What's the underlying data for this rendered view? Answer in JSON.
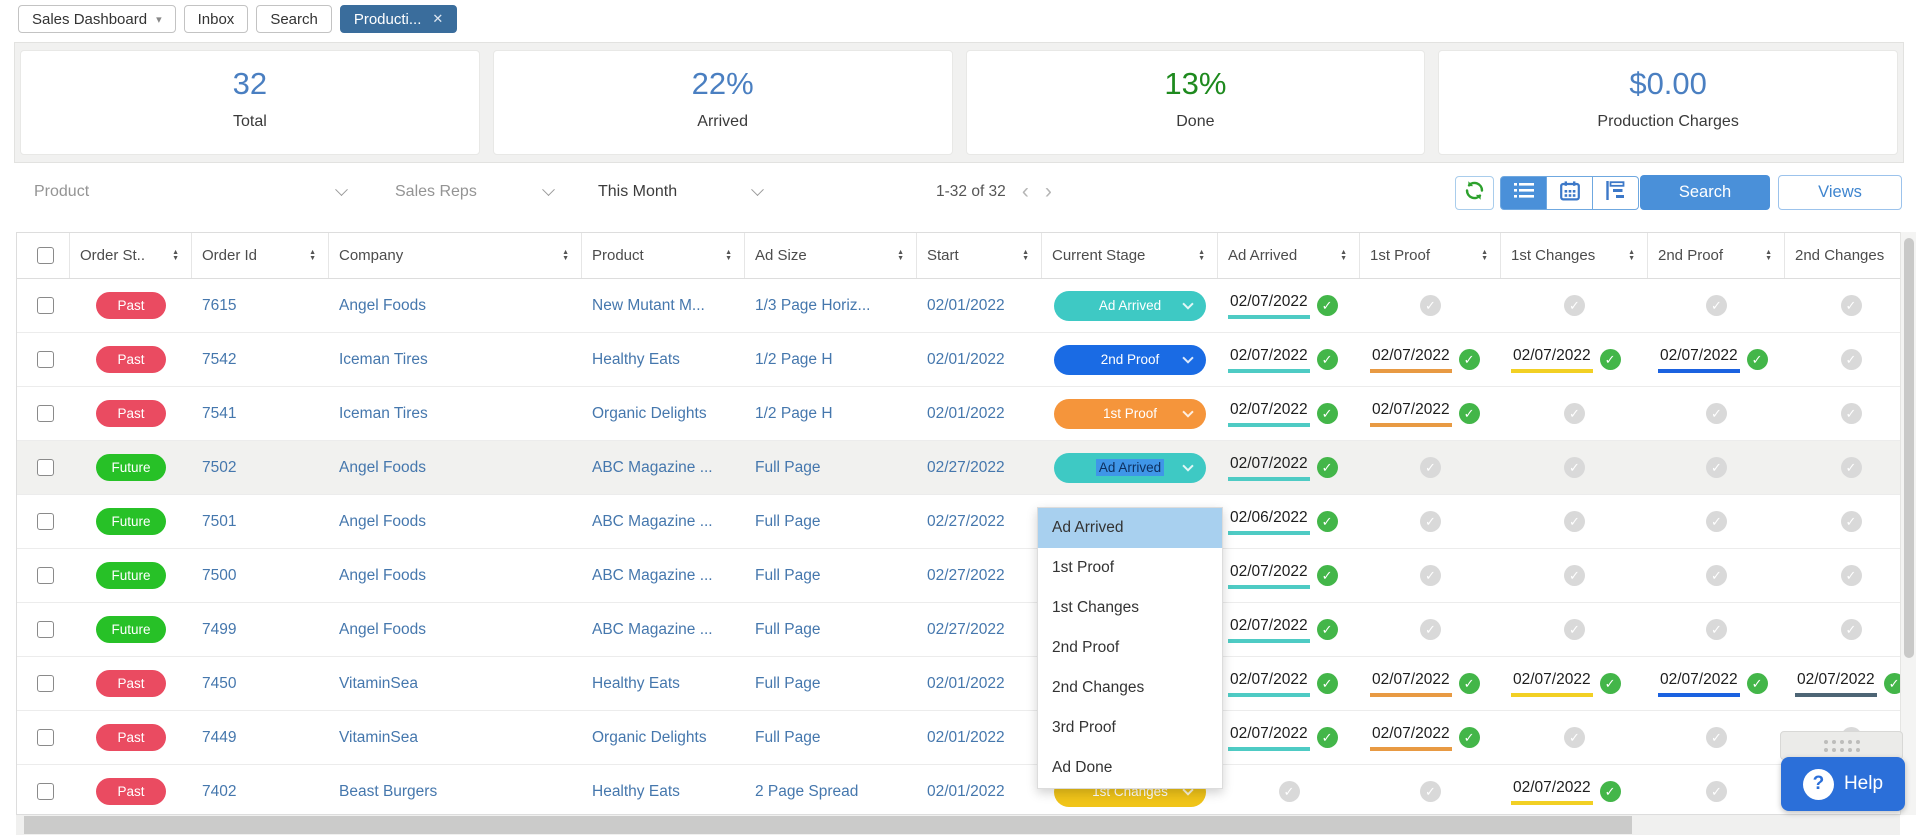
{
  "tab_bar": {
    "caret_icon": "▾",
    "close_icon": "✕",
    "tabs": [
      {
        "label": "Sales Dashboard",
        "dropdown": true,
        "active": false,
        "closable": false
      },
      {
        "label": "Inbox",
        "dropdown": false,
        "active": false,
        "closable": false
      },
      {
        "label": "Search",
        "dropdown": false,
        "active": false,
        "closable": false
      },
      {
        "label": "Producti...",
        "dropdown": false,
        "active": true,
        "closable": true
      }
    ]
  },
  "stats": {
    "cards": [
      {
        "value": "32",
        "label": "Total",
        "color": "#4a7fc1"
      },
      {
        "value": "22%",
        "label": "Arrived",
        "color": "#4a7fc1"
      },
      {
        "value": "13%",
        "label": "Done",
        "color": "#1e8a1e"
      },
      {
        "value": "$0.00",
        "label": "Production Charges",
        "color": "#4a7fc1"
      }
    ]
  },
  "filter_bar": {
    "product_filter": "Product",
    "sales_reps_filter": "Sales Reps",
    "period_filter": "This Month",
    "pagination": {
      "text": "1-32 of 32",
      "prev": "‹",
      "next": "›"
    },
    "search_label": "Search",
    "views_label": "Views"
  },
  "table": {
    "columns": [
      {
        "key": "select",
        "label": "",
        "sortable": false
      },
      {
        "key": "order_status",
        "label": "Order St..",
        "sortable": true
      },
      {
        "key": "order_id",
        "label": "Order Id",
        "sortable": true
      },
      {
        "key": "company",
        "label": "Company",
        "sortable": true
      },
      {
        "key": "product",
        "label": "Product",
        "sortable": true
      },
      {
        "key": "ad_size",
        "label": "Ad Size",
        "sortable": true
      },
      {
        "key": "start",
        "label": "Start",
        "sortable": true
      },
      {
        "key": "current_stage",
        "label": "Current Stage",
        "sortable": true
      },
      {
        "key": "ad_arrived",
        "label": "Ad Arrived",
        "sortable": true
      },
      {
        "key": "first_proof",
        "label": "1st Proof",
        "sortable": true
      },
      {
        "key": "first_changes",
        "label": "1st Changes",
        "sortable": true
      },
      {
        "key": "second_proof",
        "label": "2nd Proof",
        "sortable": true
      },
      {
        "key": "second_changes",
        "label": "2nd Changes",
        "sortable": false
      }
    ],
    "rows": [
      {
        "status": "Past",
        "order_id": "7615",
        "company": "Angel Foods",
        "product": "New Mutant M...",
        "ad_size": "1/3 Page Horiz...",
        "start": "02/01/2022",
        "stage": "Ad Arrived",
        "selected": false,
        "milestones": [
          {
            "state": "done",
            "date": "02/07/2022"
          },
          {
            "state": "pending"
          },
          {
            "state": "pending"
          },
          {
            "state": "pending"
          },
          {
            "state": "pending"
          }
        ]
      },
      {
        "status": "Past",
        "order_id": "7542",
        "company": "Iceman Tires",
        "product": "Healthy Eats",
        "ad_size": "1/2 Page H",
        "start": "02/01/2022",
        "stage": "2nd Proof",
        "selected": false,
        "milestones": [
          {
            "state": "done",
            "date": "02/07/2022"
          },
          {
            "state": "done",
            "date": "02/07/2022"
          },
          {
            "state": "done",
            "date": "02/07/2022"
          },
          {
            "state": "done",
            "date": "02/07/2022"
          },
          {
            "state": "pending"
          }
        ]
      },
      {
        "status": "Past",
        "order_id": "7541",
        "company": "Iceman Tires",
        "product": "Organic Delights",
        "ad_size": "1/2 Page H",
        "start": "02/01/2022",
        "stage": "1st Proof",
        "selected": false,
        "milestones": [
          {
            "state": "done",
            "date": "02/07/2022"
          },
          {
            "state": "done",
            "date": "02/07/2022"
          },
          {
            "state": "pending"
          },
          {
            "state": "pending"
          },
          {
            "state": "pending"
          }
        ]
      },
      {
        "status": "Future",
        "order_id": "7502",
        "company": "Angel Foods",
        "product": "ABC Magazine ...",
        "ad_size": "Full Page",
        "start": "02/27/2022",
        "stage": "Ad Arrived",
        "selected": true,
        "milestones": [
          {
            "state": "done",
            "date": "02/07/2022"
          },
          {
            "state": "pending"
          },
          {
            "state": "pending"
          },
          {
            "state": "pending"
          },
          {
            "state": "pending"
          }
        ]
      },
      {
        "status": "Future",
        "order_id": "7501",
        "company": "Angel Foods",
        "product": "ABC Magazine ...",
        "ad_size": "Full Page",
        "start": "02/27/2022",
        "stage": null,
        "selected": false,
        "milestones": [
          {
            "state": "done",
            "date": "02/06/2022"
          },
          {
            "state": "pending"
          },
          {
            "state": "pending"
          },
          {
            "state": "pending"
          },
          {
            "state": "pending"
          }
        ]
      },
      {
        "status": "Future",
        "order_id": "7500",
        "company": "Angel Foods",
        "product": "ABC Magazine ...",
        "ad_size": "Full Page",
        "start": "02/27/2022",
        "stage": null,
        "selected": false,
        "milestones": [
          {
            "state": "done",
            "date": "02/07/2022"
          },
          {
            "state": "pending"
          },
          {
            "state": "pending"
          },
          {
            "state": "pending"
          },
          {
            "state": "pending"
          }
        ]
      },
      {
        "status": "Future",
        "order_id": "7499",
        "company": "Angel Foods",
        "product": "ABC Magazine ...",
        "ad_size": "Full Page",
        "start": "02/27/2022",
        "stage": null,
        "selected": false,
        "milestones": [
          {
            "state": "done",
            "date": "02/07/2022"
          },
          {
            "state": "pending"
          },
          {
            "state": "pending"
          },
          {
            "state": "pending"
          },
          {
            "state": "pending"
          }
        ]
      },
      {
        "status": "Past",
        "order_id": "7450",
        "company": "VitaminSea",
        "product": "Healthy Eats",
        "ad_size": "Full Page",
        "start": "02/01/2022",
        "stage": null,
        "selected": false,
        "milestones": [
          {
            "state": "done",
            "date": "02/07/2022"
          },
          {
            "state": "done",
            "date": "02/07/2022"
          },
          {
            "state": "done",
            "date": "02/07/2022"
          },
          {
            "state": "done",
            "date": "02/07/2022"
          },
          {
            "state": "done",
            "date": "02/07/2022"
          }
        ]
      },
      {
        "status": "Past",
        "order_id": "7449",
        "company": "VitaminSea",
        "product": "Organic Delights",
        "ad_size": "Full Page",
        "start": "02/01/2022",
        "stage": null,
        "selected": false,
        "milestones": [
          {
            "state": "done",
            "date": "02/07/2022"
          },
          {
            "state": "done",
            "date": "02/07/2022"
          },
          {
            "state": "pending"
          },
          {
            "state": "pending"
          },
          {
            "state": "pending"
          }
        ]
      },
      {
        "status": "Past",
        "order_id": "7402",
        "company": "Beast Burgers",
        "product": "Healthy Eats",
        "ad_size": "2 Page Spread",
        "start": "02/01/2022",
        "stage": "1st Changes",
        "selected": false,
        "milestones": [
          {
            "state": "pending"
          },
          {
            "state": "pending"
          },
          {
            "state": "done",
            "date": "02/07/2022"
          },
          {
            "state": "pending"
          },
          {
            "state": "pending"
          }
        ]
      }
    ]
  },
  "stage_dropdown": {
    "highlighted": "Ad Arrived",
    "options": [
      "Ad Arrived",
      "1st Proof",
      "1st Changes",
      "2nd Proof",
      "2nd Changes",
      "3rd Proof",
      "Ad Done"
    ]
  },
  "help_button": {
    "icon": "?",
    "label": "Help"
  },
  "colors": {
    "tab_active_bg": "#3a6d9c",
    "link_blue": "#4577ad",
    "past_badge": "#ea4b61",
    "future_badge": "#27c127",
    "stage_ad_arrived": "#3ec9c4",
    "stage_1st_proof": "#f5953b",
    "stage_1st_changes": "#f0c419",
    "stage_2nd_proof": "#1a6be4",
    "milestone_underlines": [
      "#4ecbc4",
      "#e89a43",
      "#f2d024",
      "#1b62e0",
      "#4d6575"
    ],
    "check_done": "#43b649",
    "check_pending": "#d9d9d9",
    "accent_blue": "#4a90d9",
    "refresh_green": "#2da12d",
    "help_bg": "#2b6fd9",
    "dropdown_highlight": "#a8d0ef"
  }
}
